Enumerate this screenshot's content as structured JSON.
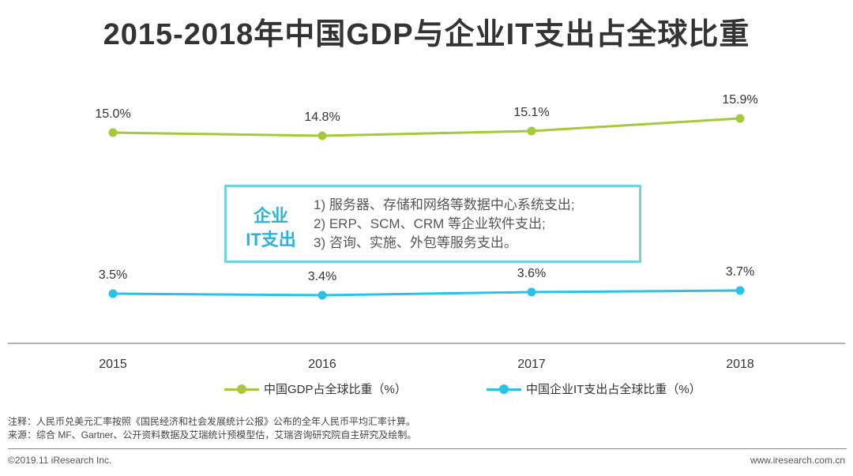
{
  "chart_data": {
    "type": "line",
    "title": "2015-2018年中国GDP与企业IT支出占全球比重",
    "categories": [
      "2015",
      "2016",
      "2017",
      "2018"
    ],
    "series": [
      {
        "name": "中国GDP占全球比重（%）",
        "color": "#a5c93a",
        "values": [
          15.0,
          14.8,
          15.1,
          15.9
        ],
        "labels": [
          "15.0%",
          "14.8%",
          "15.1%",
          "15.9%"
        ]
      },
      {
        "name": "中国企业IT支出占全球比重（%）",
        "color": "#27c4e8",
        "values": [
          3.5,
          3.4,
          3.6,
          3.7
        ],
        "labels": [
          "3.5%",
          "3.4%",
          "3.6%",
          "3.7%"
        ]
      }
    ],
    "ylim": [
      0,
      18
    ],
    "xlabel": "",
    "ylabel": "",
    "grid": false,
    "legend_position": "bottom"
  },
  "it_box": {
    "title_line1": "企业",
    "title_line2": "IT支出",
    "items": [
      "1) 服务器、存储和网络等数据中心系统支出;",
      "2) ERP、SCM、CRM 等企业软件支出;",
      "3) 咨询、实施、外包等服务支出。"
    ]
  },
  "notes": {
    "note": "注释：人民币兑美元汇率按照《国民经济和社会发展统计公报》公布的全年人民币平均汇率计算。",
    "source": "来源：综合 MF、Gartner、公开资料数据及艾瑞统计预模型估，艾瑞咨询研究院自主研究及绘制。"
  },
  "footer": {
    "copyright": "©2019.11 iResearch Inc.",
    "website": "www.iresearch.com.cn"
  },
  "colors": {
    "gdp": "#a5c93a",
    "it": "#27c4e8",
    "box_border": "#6fd3e0",
    "box_title": "#27b4d8"
  }
}
